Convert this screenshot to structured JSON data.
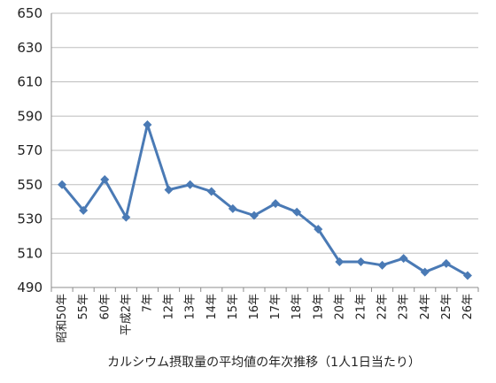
{
  "chart_data": {
    "type": "line",
    "xlabel": "カルシウム摂取量の平均値の年次推移（1人1日当たり）",
    "ylabel": "",
    "ylim": [
      490,
      650
    ],
    "yticks": [
      490,
      510,
      530,
      550,
      570,
      590,
      610,
      630,
      650
    ],
    "grid": true,
    "legend": "none",
    "categories": [
      "昭和50年",
      "55年",
      "60年",
      "平成2年",
      "7年",
      "12年",
      "13年",
      "14年",
      "15年",
      "16年",
      "17年",
      "18年",
      "19年",
      "20年",
      "21年",
      "22年",
      "23年",
      "24年",
      "25年",
      "26年"
    ],
    "series": [
      {
        "color": "#4a7ab5",
        "values": [
          550,
          535,
          553,
          531,
          585,
          547,
          550,
          546,
          536,
          532,
          539,
          534,
          524,
          505,
          505,
          503,
          507,
          499,
          504,
          497
        ]
      }
    ]
  }
}
